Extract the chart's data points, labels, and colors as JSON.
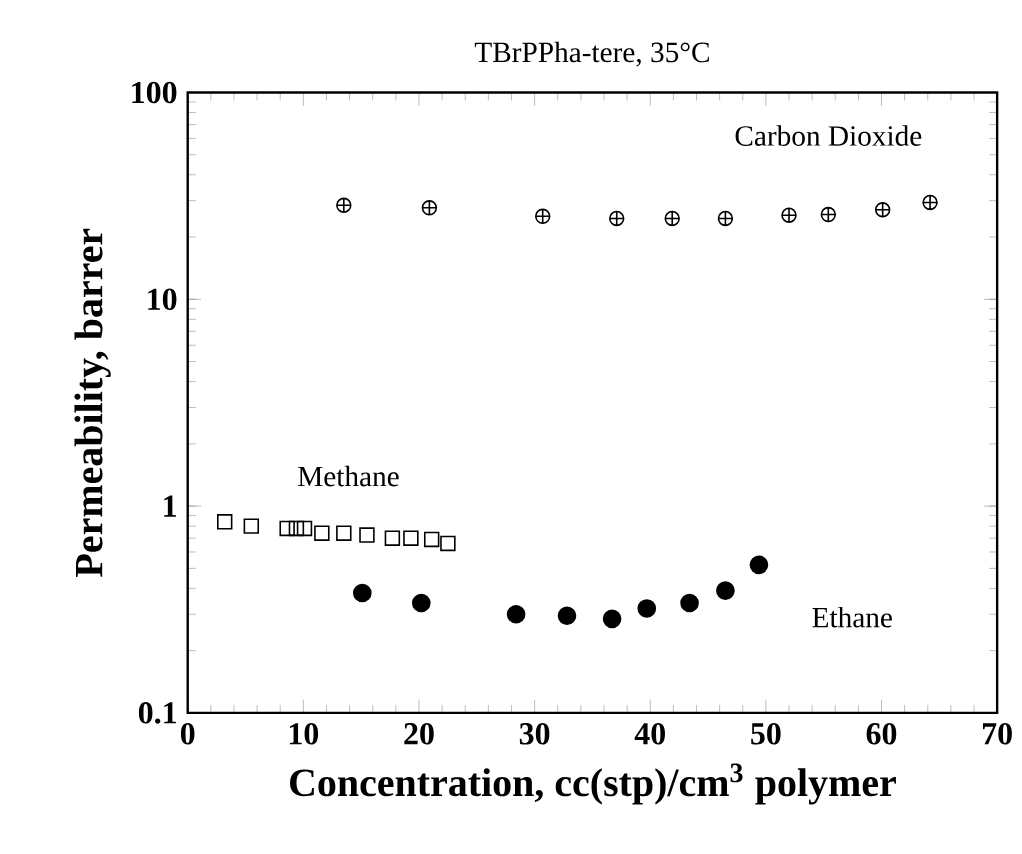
{
  "chart_data": {
    "type": "scatter",
    "title": "TBrPPha-tere, 35°C",
    "xlabel": "Concentration, cc(stp)/cm$^{3}$ polymer",
    "ylabel": "Permeability, barrer",
    "xlim": [
      0,
      70
    ],
    "xticks": [
      0,
      10,
      20,
      30,
      40,
      50,
      60,
      70
    ],
    "ylim": [
      0.1,
      100
    ],
    "yticks": [
      0.1,
      1,
      10,
      100
    ],
    "log": "y",
    "grid": false,
    "legend": false,
    "series": [
      {
        "name": "Carbon Dioxide",
        "color": "#000000",
        "marker": "cross",
        "x": [
          13.5,
          20.9,
          30.7,
          37.1,
          41.9,
          46.5,
          52.0,
          55.4,
          60.1,
          64.2
        ],
        "values": [
          28.5,
          27.7,
          25.2,
          24.6,
          24.6,
          24.6,
          25.5,
          25.7,
          27.1,
          29.4
        ]
      },
      {
        "name": "Methane",
        "color": "#000000",
        "marker": "square",
        "x": [
          3.2,
          5.5,
          8.6,
          9.4,
          10.1,
          11.6,
          13.5,
          15.5,
          17.7,
          19.3,
          21.1,
          22.5
        ],
        "values": [
          0.84,
          0.8,
          0.78,
          0.78,
          0.78,
          0.74,
          0.74,
          0.725,
          0.7,
          0.7,
          0.69,
          0.66
        ]
      },
      {
        "name": "Ethane",
        "color": "#000000",
        "marker": "circle",
        "x": [
          15.1,
          20.2,
          28.4,
          32.8,
          36.7,
          39.7,
          43.4,
          46.5,
          49.4
        ],
        "values": [
          0.38,
          0.34,
          0.3,
          0.295,
          0.285,
          0.32,
          0.34,
          0.39,
          0.52
        ]
      }
    ]
  }
}
